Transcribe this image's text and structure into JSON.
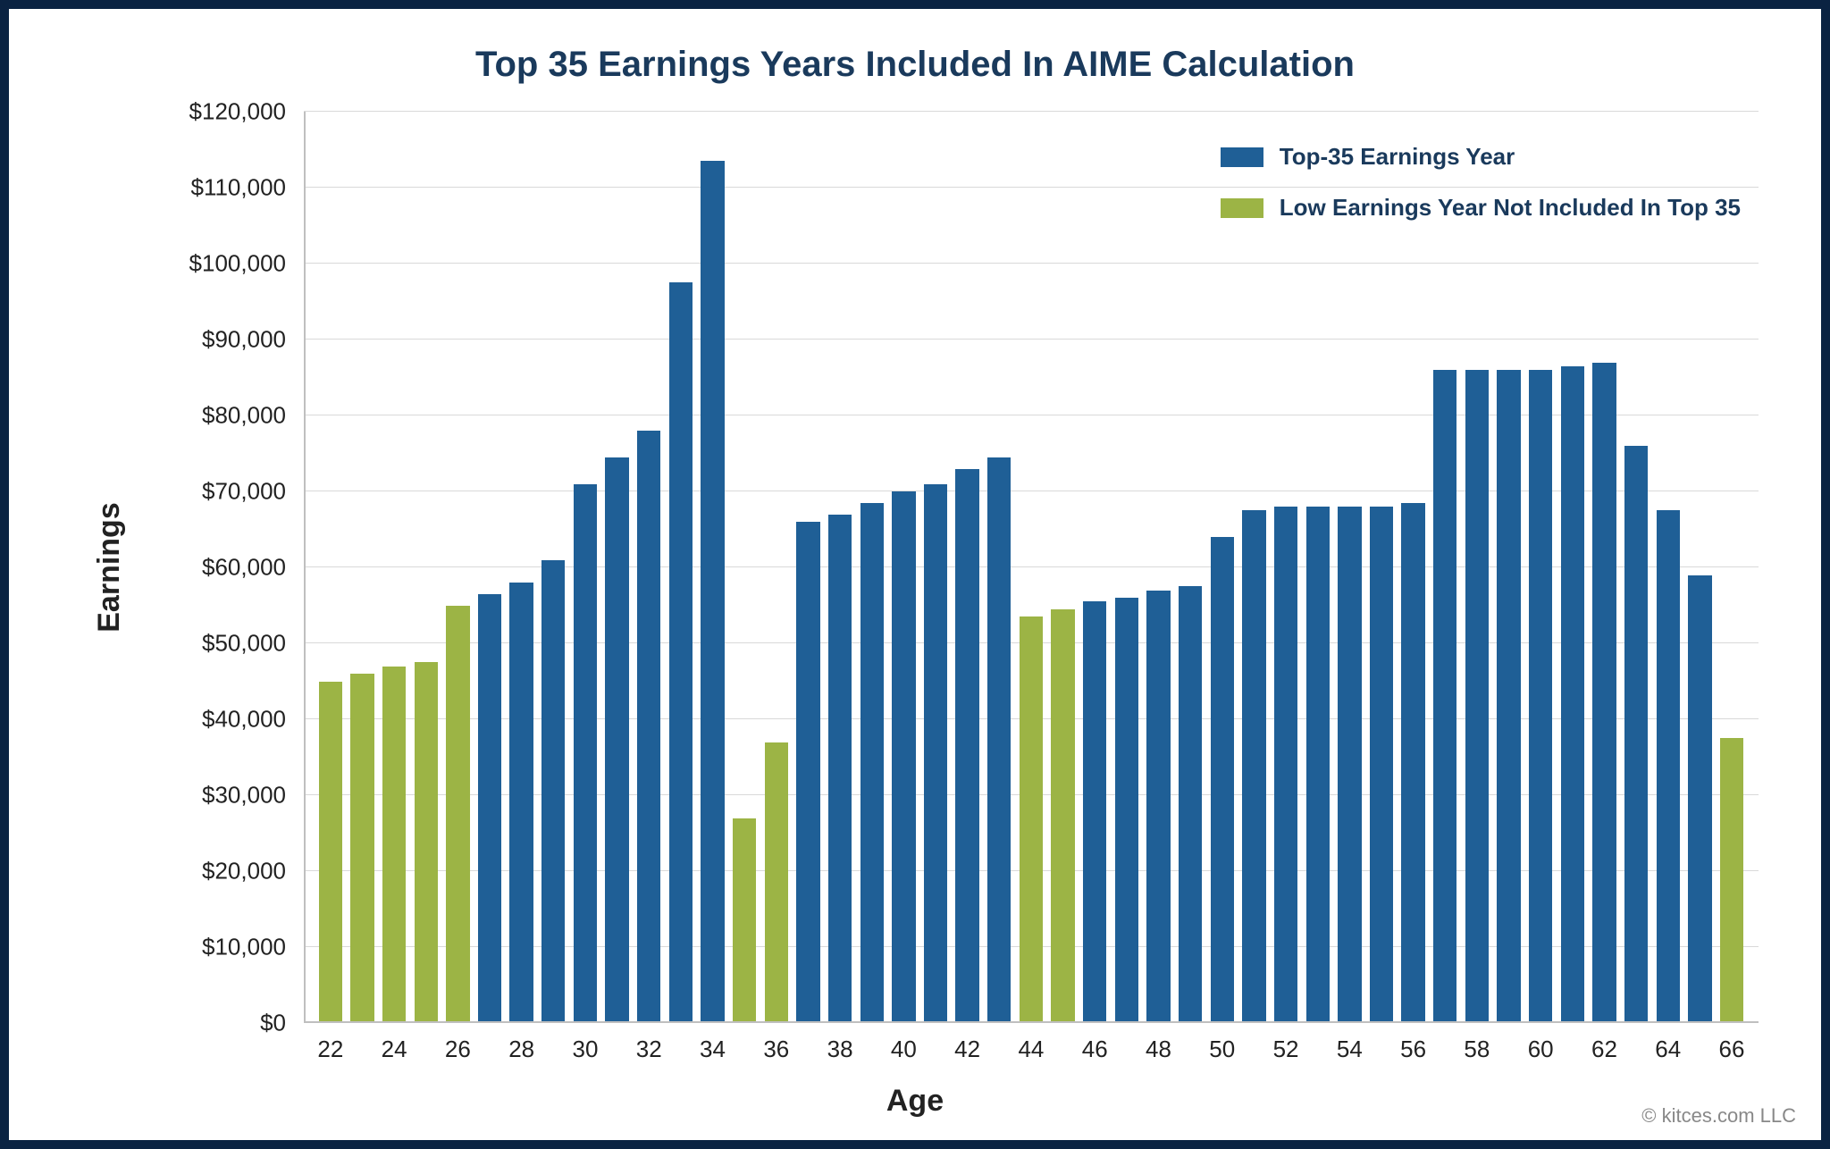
{
  "chart": {
    "type": "bar",
    "title": "Top 35 Earnings Years Included In AIME Calculation",
    "title_fontsize": 40,
    "title_color": "#1a3a5c",
    "xlabel": "Age",
    "ylabel": "Earnings",
    "label_fontsize": 34,
    "ylim": [
      0,
      120000
    ],
    "ytick_step": 10000,
    "ytick_format": "currency_thousands",
    "yticks": [
      "$0",
      "$10,000",
      "$20,000",
      "$30,000",
      "$40,000",
      "$50,000",
      "$60,000",
      "$70,000",
      "$80,000",
      "$90,000",
      "$100,000",
      "$110,000",
      "$120,000"
    ],
    "xtick_step": 2,
    "xtick_start": 22,
    "xtick_end": 66,
    "background_color": "#ffffff",
    "grid_color": "#d9d9d9",
    "axis_color": "#bfbfbf",
    "border_color": "#0a2342",
    "border_width": 10,
    "bar_width_ratio": 0.74,
    "tick_fontsize": 26,
    "series_colors": {
      "top35": "#1f5f96",
      "low": "#9cb445"
    },
    "legend": {
      "position": "top-right",
      "items": [
        {
          "key": "top35",
          "label": "Top-35 Earnings Year",
          "color": "#1f5f96"
        },
        {
          "key": "low",
          "label": "Low Earnings Year Not Included In Top 35",
          "color": "#9cb445"
        }
      ],
      "fontsize": 26,
      "font_color": "#1a3a5c",
      "swatch_w": 48,
      "swatch_h": 22
    },
    "data": [
      {
        "age": 22,
        "value": 45000,
        "series": "low"
      },
      {
        "age": 23,
        "value": 46000,
        "series": "low"
      },
      {
        "age": 24,
        "value": 47000,
        "series": "low"
      },
      {
        "age": 25,
        "value": 47500,
        "series": "low"
      },
      {
        "age": 26,
        "value": 55000,
        "series": "low"
      },
      {
        "age": 27,
        "value": 56500,
        "series": "top35"
      },
      {
        "age": 28,
        "value": 58000,
        "series": "top35"
      },
      {
        "age": 29,
        "value": 61000,
        "series": "top35"
      },
      {
        "age": 30,
        "value": 71000,
        "series": "top35"
      },
      {
        "age": 31,
        "value": 74500,
        "series": "top35"
      },
      {
        "age": 32,
        "value": 78000,
        "series": "top35"
      },
      {
        "age": 33,
        "value": 97500,
        "series": "top35"
      },
      {
        "age": 34,
        "value": 113500,
        "series": "top35"
      },
      {
        "age": 35,
        "value": 27000,
        "series": "low"
      },
      {
        "age": 36,
        "value": 37000,
        "series": "low"
      },
      {
        "age": 37,
        "value": 66000,
        "series": "top35"
      },
      {
        "age": 38,
        "value": 67000,
        "series": "top35"
      },
      {
        "age": 39,
        "value": 68500,
        "series": "top35"
      },
      {
        "age": 40,
        "value": 70000,
        "series": "top35"
      },
      {
        "age": 41,
        "value": 71000,
        "series": "top35"
      },
      {
        "age": 42,
        "value": 73000,
        "series": "top35"
      },
      {
        "age": 43,
        "value": 74500,
        "series": "top35"
      },
      {
        "age": 44,
        "value": 53500,
        "series": "low"
      },
      {
        "age": 45,
        "value": 54500,
        "series": "low"
      },
      {
        "age": 46,
        "value": 55500,
        "series": "top35"
      },
      {
        "age": 47,
        "value": 56000,
        "series": "top35"
      },
      {
        "age": 48,
        "value": 57000,
        "series": "top35"
      },
      {
        "age": 49,
        "value": 57500,
        "series": "top35"
      },
      {
        "age": 50,
        "value": 64000,
        "series": "top35"
      },
      {
        "age": 51,
        "value": 67500,
        "series": "top35"
      },
      {
        "age": 52,
        "value": 68000,
        "series": "top35"
      },
      {
        "age": 53,
        "value": 68000,
        "series": "top35"
      },
      {
        "age": 54,
        "value": 68000,
        "series": "top35"
      },
      {
        "age": 55,
        "value": 68000,
        "series": "top35"
      },
      {
        "age": 56,
        "value": 68500,
        "series": "top35"
      },
      {
        "age": 57,
        "value": 86000,
        "series": "top35"
      },
      {
        "age": 58,
        "value": 86000,
        "series": "top35"
      },
      {
        "age": 59,
        "value": 86000,
        "series": "top35"
      },
      {
        "age": 60,
        "value": 86000,
        "series": "top35"
      },
      {
        "age": 61,
        "value": 86500,
        "series": "top35"
      },
      {
        "age": 62,
        "value": 87000,
        "series": "top35"
      },
      {
        "age": 63,
        "value": 76000,
        "series": "top35"
      },
      {
        "age": 64,
        "value": 67500,
        "series": "top35"
      },
      {
        "age": 65,
        "value": 59000,
        "series": "top35"
      },
      {
        "age": 66,
        "value": 37500,
        "series": "low"
      }
    ]
  },
  "copyright": "© kitces.com LLC"
}
